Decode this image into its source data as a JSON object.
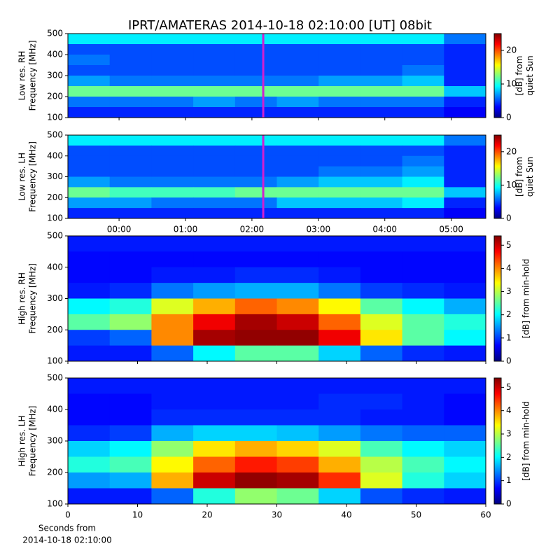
{
  "title": "IPRT/AMATERAS 2014-10-18 02:10:00 [UT]   08bit",
  "chart_data": [
    {
      "type": "heatmap",
      "ylabel": [
        "Low res. RH",
        "Frequency [MHz]"
      ],
      "colorbar_label": [
        "[dB] from",
        "quiet Sun"
      ],
      "xlim": [
        -0.77,
        5.52
      ],
      "ylim": [
        100,
        500
      ],
      "yticks": [
        100,
        200,
        300,
        400,
        500
      ],
      "zlim": [
        0,
        25
      ],
      "zticks": [
        0,
        10,
        20
      ],
      "marker_x": 2.17,
      "marker_color": "#d020d0",
      "z": [
        [
          9,
          9,
          9,
          9,
          9,
          9,
          9,
          9,
          9,
          6
        ],
        [
          5,
          5,
          5,
          5,
          5,
          5,
          5,
          5,
          5,
          4
        ],
        [
          6,
          5,
          5,
          5,
          5,
          5,
          5,
          5,
          5,
          4
        ],
        [
          5,
          5,
          5,
          5,
          5,
          5,
          5,
          5,
          6,
          4
        ],
        [
          7,
          6,
          6,
          6,
          6,
          6,
          7,
          7,
          8,
          4
        ],
        [
          12,
          12,
          12,
          12,
          12,
          12,
          12,
          12,
          12,
          8
        ],
        [
          6,
          6,
          6,
          7,
          6,
          7,
          6,
          6,
          6,
          4
        ],
        [
          4,
          4,
          4,
          4,
          4,
          4,
          4,
          4,
          4,
          3
        ]
      ]
    },
    {
      "type": "heatmap",
      "ylabel": [
        "Low res. LH",
        "Frequency [MHz]"
      ],
      "colorbar_label": [
        "[dB] from",
        "quiet Sun"
      ],
      "xlim": [
        -0.77,
        5.52
      ],
      "ylim": [
        100,
        500
      ],
      "yticks": [
        100,
        200,
        300,
        400,
        500
      ],
      "zlim": [
        0,
        25
      ],
      "zticks": [
        0,
        10,
        20
      ],
      "xticks": [
        {
          "value": 0,
          "label": "00:00"
        },
        {
          "value": 1,
          "label": "01:00"
        },
        {
          "value": 2,
          "label": "02:00"
        },
        {
          "value": 3,
          "label": "03:00"
        },
        {
          "value": 4,
          "label": "04:00"
        },
        {
          "value": 5,
          "label": "05:00"
        }
      ],
      "marker_x": 2.17,
      "marker_color": "#d020d0",
      "z": [
        [
          9,
          9,
          9,
          9,
          9,
          9,
          9,
          9,
          9,
          6
        ],
        [
          5,
          5,
          5,
          5,
          5,
          5,
          5,
          5,
          5,
          4
        ],
        [
          5,
          5,
          5,
          5,
          5,
          5,
          5,
          5,
          6,
          4
        ],
        [
          5,
          5,
          5,
          5,
          5,
          5,
          6,
          6,
          7,
          4
        ],
        [
          7,
          6,
          6,
          6,
          6,
          7,
          8,
          8,
          9,
          4
        ],
        [
          12,
          11,
          11,
          11,
          12,
          12,
          12,
          12,
          12,
          8
        ],
        [
          7,
          7,
          6,
          6,
          6,
          8,
          8,
          8,
          9,
          4
        ],
        [
          4,
          4,
          4,
          4,
          4,
          4,
          4,
          4,
          4,
          3
        ]
      ]
    },
    {
      "type": "heatmap",
      "ylabel": [
        "High res. RH",
        "Frequency [MHz]"
      ],
      "colorbar_label": [
        "[dB] from min-hold"
      ],
      "xlim": [
        0,
        60
      ],
      "ylim": [
        100,
        500
      ],
      "yticks": [
        100,
        200,
        300,
        400,
        500
      ],
      "zlim": [
        0,
        5.4
      ],
      "zticks": [
        0,
        1,
        2,
        3,
        4,
        5
      ],
      "z": [
        [
          0.8,
          0.8,
          0.8,
          0.8,
          0.8,
          0.8,
          0.8,
          0.8,
          0.8,
          0.8
        ],
        [
          0.7,
          0.7,
          0.7,
          0.7,
          0.7,
          0.7,
          0.7,
          0.7,
          0.7,
          0.7
        ],
        [
          0.7,
          0.7,
          0.8,
          0.8,
          0.9,
          0.9,
          0.8,
          0.7,
          0.7,
          0.7
        ],
        [
          0.8,
          0.9,
          1.3,
          1.5,
          1.6,
          1.6,
          1.3,
          1.0,
          0.9,
          0.8
        ],
        [
          2.0,
          2.2,
          3.2,
          3.8,
          4.2,
          4.0,
          3.4,
          2.5,
          2.0,
          1.6
        ],
        [
          2.5,
          2.8,
          4.0,
          4.8,
          5.2,
          5.0,
          4.2,
          3.2,
          2.5,
          2.2
        ],
        [
          1.0,
          1.2,
          4.0,
          5.2,
          5.3,
          5.3,
          4.8,
          3.5,
          2.5,
          2.0
        ],
        [
          0.8,
          0.8,
          1.2,
          2.0,
          2.5,
          2.5,
          1.8,
          1.2,
          0.9,
          0.8
        ]
      ]
    },
    {
      "type": "heatmap",
      "ylabel": [
        "High res. LH",
        "Frequency [MHz]"
      ],
      "colorbar_label": [
        "[dB] from min-hold"
      ],
      "xlim": [
        0,
        60
      ],
      "ylim": [
        100,
        500
      ],
      "yticks": [
        100,
        200,
        300,
        400,
        500
      ],
      "zlim": [
        0,
        5.4
      ],
      "zticks": [
        0,
        1,
        2,
        3,
        4,
        5
      ],
      "xticks": [
        0,
        10,
        20,
        30,
        40,
        50,
        60
      ],
      "xlabel": [
        "Seconds from",
        "2014-10-18 02:10:00"
      ],
      "z": [
        [
          0.8,
          0.8,
          0.8,
          0.8,
          0.8,
          0.8,
          0.8,
          0.8,
          0.8,
          0.8
        ],
        [
          0.7,
          0.7,
          0.8,
          0.8,
          0.8,
          0.8,
          0.9,
          0.9,
          0.8,
          0.7
        ],
        [
          0.7,
          0.7,
          0.9,
          0.9,
          0.9,
          0.9,
          0.9,
          0.8,
          0.8,
          0.7
        ],
        [
          0.9,
          1.0,
          1.6,
          1.8,
          1.8,
          1.7,
          1.5,
          1.3,
          1.2,
          1.2
        ],
        [
          1.8,
          2.0,
          2.8,
          3.5,
          3.8,
          3.6,
          3.2,
          2.4,
          2.0,
          1.8
        ],
        [
          2.2,
          2.4,
          3.4,
          4.2,
          4.6,
          4.4,
          3.8,
          3.0,
          2.4,
          2.0
        ],
        [
          1.5,
          1.6,
          3.8,
          5.0,
          5.3,
          5.2,
          4.5,
          3.2,
          2.2,
          1.8
        ],
        [
          0.8,
          0.8,
          1.2,
          2.2,
          2.8,
          2.6,
          1.8,
          1.1,
          0.9,
          0.8
        ]
      ]
    }
  ]
}
